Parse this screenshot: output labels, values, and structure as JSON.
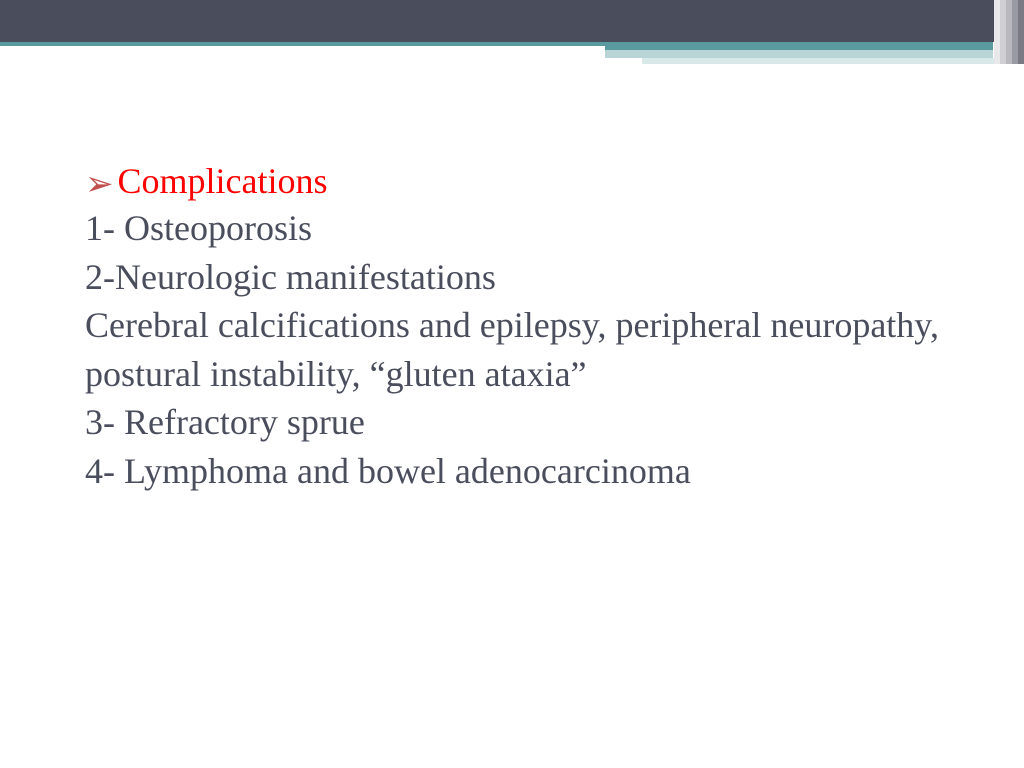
{
  "colors": {
    "header_band": "#4a4e5c",
    "accent_dark": "#5a9ba0",
    "accent_mid": "#b8d4d6",
    "accent_light": "#d9e8e9",
    "bullet_color": "#c0504d",
    "heading_color": "#ff0000",
    "body_text": "#4a4e5c",
    "background": "#ffffff",
    "edge_1": "#e8e8ea",
    "edge_2": "#d0d0d4",
    "edge_3": "#b8b8be",
    "edge_4": "#9a9aa2",
    "edge_5": "#7a7a84"
  },
  "typography": {
    "font_family": "Georgia, serif",
    "heading_fontsize": 36,
    "body_fontsize": 36,
    "line_height": 1.35
  },
  "content": {
    "bullet_glyph": "➢",
    "heading": "Complications",
    "lines": [
      "1- Osteoporosis",
      "2-Neurologic manifestations",
      "Cerebral calcifications and epilepsy, peripheral neuropathy, postural instability, “gluten ataxia”",
      "3- Refractory sprue",
      "4- Lymphoma and bowel  adenocarcinoma"
    ]
  }
}
